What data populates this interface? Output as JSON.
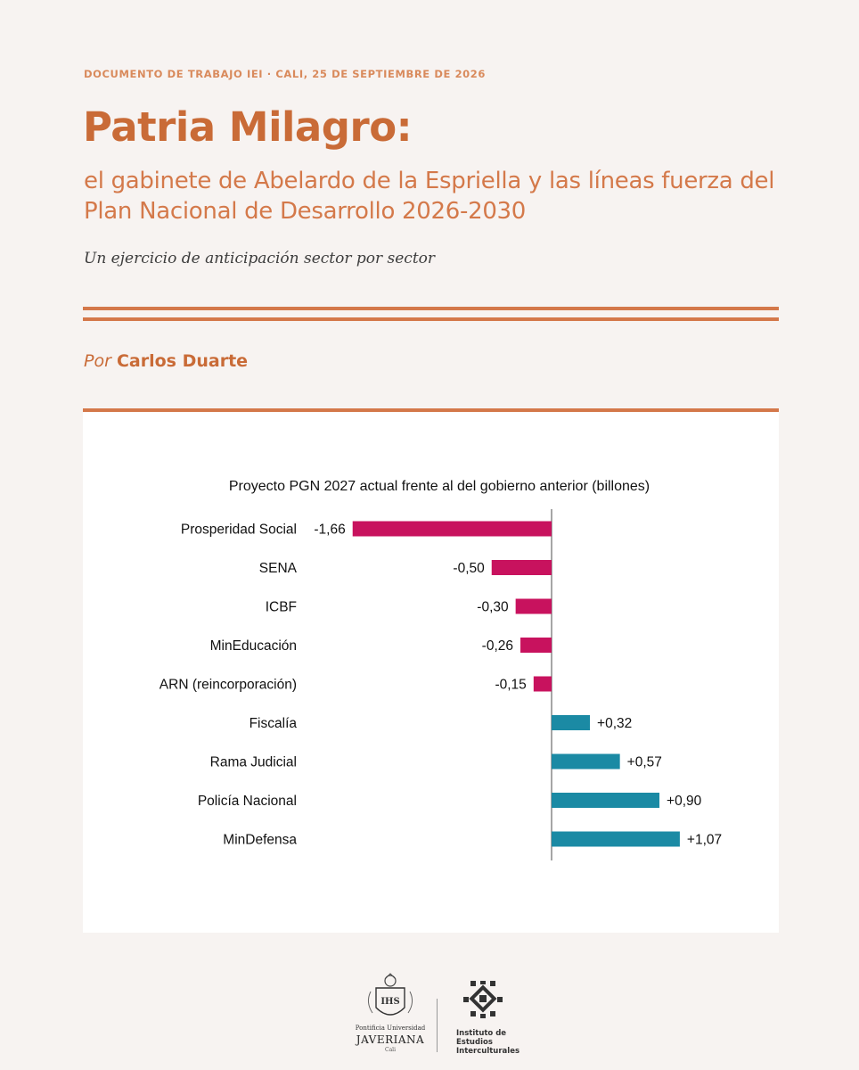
{
  "document": {
    "kicker": "DOCUMENTO DE TRABAJO IEI · CALI, 25 DE SEPTIEMBRE DE 2026",
    "title": "Patria Milagro:",
    "subtitle": "el gabinete de Abelardo de la Espriella y las líneas fuerza del Plan Nacional de Desarrollo 2026-2030",
    "tagline": "Un ejercicio de anticipación sector por sector",
    "byline_prefix": "Por",
    "author": "Carlos Duarte"
  },
  "colors": {
    "accent": "#c96b37",
    "negative": "#c8125e",
    "positive": "#1b8aa4"
  },
  "chart_data": {
    "type": "bar",
    "orientation": "horizontal",
    "title": "Proyecto PGN 2027 actual frente al del gobierno anterior (billones)",
    "categories": [
      "Prosperidad Social",
      "SENA",
      "ICBF",
      "MinEducación",
      "ARN (reincorporación)",
      "Fiscalía",
      "Rama Judicial",
      "Policía Nacional",
      "MinDefensa"
    ],
    "values": [
      -1.66,
      -0.5,
      -0.3,
      -0.26,
      -0.15,
      0.32,
      0.57,
      0.9,
      1.07
    ],
    "data_labels": [
      "-1,66",
      "-0,50",
      "-0,30",
      "-0,26",
      "-0,15",
      "+0,32",
      "+0,57",
      "+0,90",
      "+1,07"
    ],
    "grid": false,
    "legend": "none"
  },
  "footer": {
    "javeriana": {
      "university": "Pontificia Universidad",
      "name": "JAVERIANA",
      "city": "Cali",
      "emblem_text": "IHS"
    },
    "iei": {
      "label": "Instituto de Estudios Interculturales"
    }
  }
}
